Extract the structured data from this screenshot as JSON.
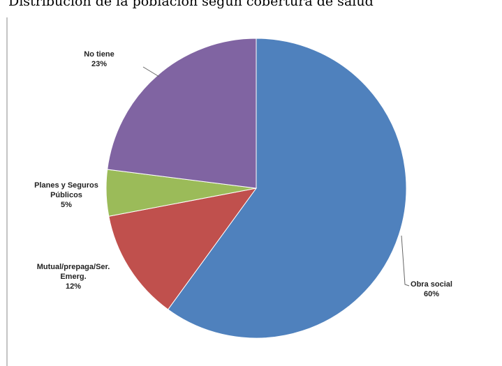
{
  "chart_data": {
    "type": "pie",
    "title": "Distribución de la población según cobertura de salud",
    "categories": [
      "Obra social",
      "Mutual/prepaga/Ser. Emerg.",
      "Planes y Seguros Públicos",
      "No tiene"
    ],
    "values": [
      60,
      12,
      5,
      23
    ],
    "value_labels": [
      "60%",
      "12%",
      "5%",
      "23%"
    ],
    "colors": [
      "#4f81bd",
      "#c0504d",
      "#9bbb59",
      "#8064a2"
    ]
  }
}
